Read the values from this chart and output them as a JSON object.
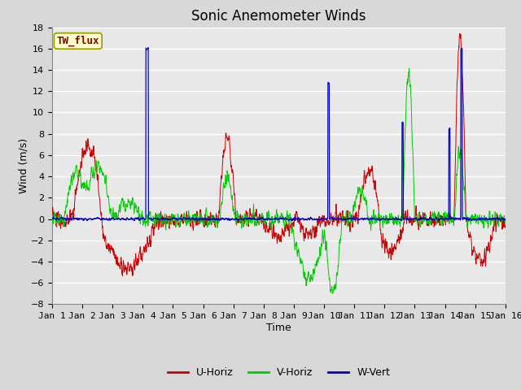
{
  "title": "Sonic Anemometer Winds",
  "xlabel": "Time",
  "ylabel": "Wind (m/s)",
  "ylim": [
    -8,
    18
  ],
  "yticks": [
    -8,
    -6,
    -4,
    -2,
    0,
    2,
    4,
    6,
    8,
    10,
    12,
    14,
    16,
    18
  ],
  "xlim": [
    0,
    15
  ],
  "xtick_labels": [
    "Jan 1",
    "Jan 2",
    "Jan 3",
    "Jan 4",
    "Jan 5",
    "Jan 6",
    "Jan 7",
    "Jan 8",
    "Jan 9",
    "Jan 10",
    "Jan 11",
    "Jan 12",
    "Jan 13",
    "Jan 14",
    "Jan 15",
    "Jan 16"
  ],
  "fig_bg_color": "#d8d8d8",
  "plot_bg_color": "#e8e8e8",
  "grid_color": "#ffffff",
  "u_color": "#cc0000",
  "v_color": "#00cc00",
  "w_color": "#0000cc",
  "legend_label_u": "U-Horiz",
  "legend_label_v": "V-Horiz",
  "legend_label_w": "W-Vert",
  "site_label": "TW_flux",
  "title_fontsize": 12,
  "axis_label_fontsize": 9,
  "tick_fontsize": 8
}
